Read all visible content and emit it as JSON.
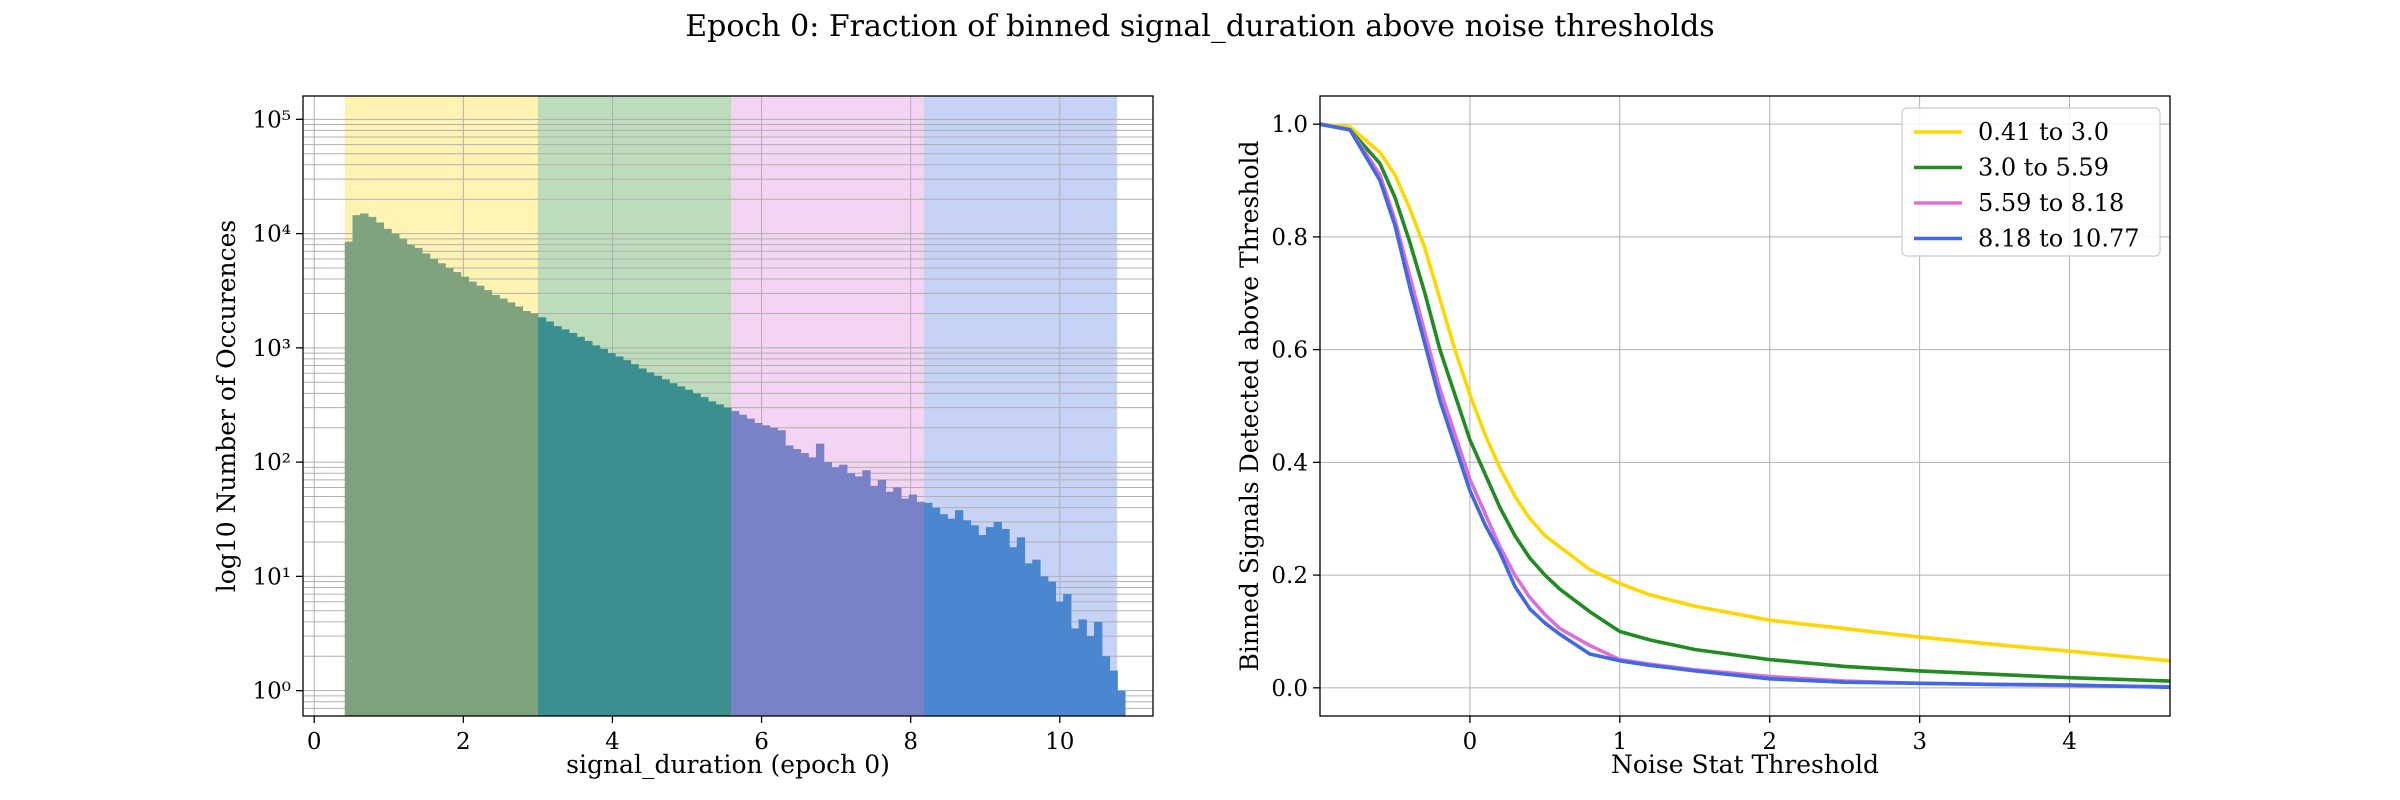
{
  "figure": {
    "title": "Epoch 0: Fraction of binned signal_duration above noise thresholds"
  },
  "chart_data": [
    {
      "type": "bar",
      "subtype": "histogram",
      "xlabel": "signal_duration (epoch 0)",
      "ylabel": "log10 Number of Occurences",
      "yscale": "log",
      "xlim": [
        -0.15,
        11.25
      ],
      "ylim": [
        0.6,
        160000
      ],
      "xticks": [
        0,
        2,
        4,
        6,
        8,
        10
      ],
      "xtick_labels": [
        "0",
        "2",
        "4",
        "6",
        "8",
        "10"
      ],
      "yticks": [
        1,
        10,
        100,
        1000,
        10000,
        100000
      ],
      "ytick_labels": [
        "10⁰",
        "10¹",
        "10²",
        "10³",
        "10⁴",
        "10⁵"
      ],
      "grid": true,
      "bin_start": 0.41,
      "bin_width": 0.1036,
      "counts": [
        8500,
        14500,
        15000,
        14000,
        12500,
        11000,
        10000,
        9000,
        8000,
        7500,
        6700,
        6000,
        5500,
        5000,
        4600,
        4200,
        3800,
        3500,
        3200,
        2900,
        2700,
        2500,
        2300,
        2100,
        2000,
        1850,
        1700,
        1550,
        1450,
        1350,
        1250,
        1150,
        1050,
        980,
        900,
        840,
        780,
        720,
        660,
        610,
        570,
        530,
        490,
        460,
        430,
        400,
        370,
        340,
        320,
        300,
        280,
        260,
        240,
        220,
        210,
        200,
        190,
        140,
        130,
        120,
        110,
        145,
        100,
        90,
        95,
        80,
        75,
        85,
        62,
        70,
        55,
        60,
        48,
        52,
        45,
        44,
        40,
        35,
        32,
        38,
        31,
        28,
        23,
        27,
        30,
        26,
        18,
        22,
        13,
        14,
        10,
        9,
        6,
        7,
        3.5,
        4.2,
        3.0,
        4.0,
        2.0,
        1.5,
        1.0
      ],
      "highlight_bands": [
        {
          "label": "0.41 to 3.0",
          "x0": 0.41,
          "x1": 3.0,
          "color": "#ffd700"
        },
        {
          "label": "3.0 to 5.59",
          "x0": 3.0,
          "x1": 5.59,
          "color": "#228b22"
        },
        {
          "label": "5.59 to 8.18",
          "x0": 5.59,
          "x1": 8.18,
          "color": "#da70d6"
        },
        {
          "label": "8.18 to 10.77",
          "x0": 8.18,
          "x1": 10.77,
          "color": "#4169e1"
        }
      ],
      "band_bar_colors": [
        "#7fa37f",
        "#3b8f8f",
        "#7a82c7",
        "#4a87ce"
      ]
    },
    {
      "type": "line",
      "xlabel": "Noise Stat Threshold",
      "ylabel": "Binned Signals Detected above Threshold",
      "xlim": [
        -1.0,
        4.67
      ],
      "ylim": [
        -0.05,
        1.05
      ],
      "xticks": [
        0,
        1,
        2,
        3,
        4
      ],
      "xtick_labels": [
        "0",
        "1",
        "2",
        "3",
        "4"
      ],
      "yticks": [
        0.0,
        0.2,
        0.4,
        0.6,
        0.8,
        1.0
      ],
      "ytick_labels": [
        "0.0",
        "0.2",
        "0.4",
        "0.6",
        "0.8",
        "1.0"
      ],
      "grid": true,
      "legend_position": "top-right",
      "x": [
        -1.0,
        -0.8,
        -0.6,
        -0.5,
        -0.4,
        -0.3,
        -0.2,
        -0.1,
        0.0,
        0.1,
        0.2,
        0.3,
        0.4,
        0.5,
        0.6,
        0.8,
        1.0,
        1.2,
        1.5,
        2.0,
        2.5,
        3.0,
        3.5,
        4.0,
        4.67
      ],
      "series": [
        {
          "name": "0.41 to 3.0",
          "color": "#ffd700",
          "values": [
            1.0,
            0.995,
            0.95,
            0.91,
            0.85,
            0.78,
            0.69,
            0.6,
            0.52,
            0.45,
            0.39,
            0.34,
            0.3,
            0.27,
            0.25,
            0.21,
            0.185,
            0.165,
            0.145,
            0.12,
            0.105,
            0.09,
            0.077,
            0.065,
            0.048
          ]
        },
        {
          "name": "3.0 to 5.59",
          "color": "#228b22",
          "values": [
            1.0,
            0.99,
            0.93,
            0.87,
            0.79,
            0.7,
            0.6,
            0.52,
            0.44,
            0.38,
            0.32,
            0.27,
            0.23,
            0.2,
            0.175,
            0.135,
            0.1,
            0.085,
            0.068,
            0.05,
            0.038,
            0.03,
            0.024,
            0.018,
            0.012
          ]
        },
        {
          "name": "5.59 to 8.18",
          "color": "#da70d6",
          "values": [
            1.0,
            0.99,
            0.91,
            0.83,
            0.73,
            0.63,
            0.53,
            0.45,
            0.37,
            0.31,
            0.25,
            0.2,
            0.16,
            0.13,
            0.105,
            0.075,
            0.05,
            0.042,
            0.032,
            0.02,
            0.012,
            0.008,
            0.006,
            0.004,
            0.002
          ]
        },
        {
          "name": "8.18 to 10.77",
          "color": "#4169e1",
          "values": [
            1.0,
            0.99,
            0.9,
            0.82,
            0.71,
            0.61,
            0.51,
            0.43,
            0.35,
            0.29,
            0.24,
            0.18,
            0.14,
            0.115,
            0.095,
            0.06,
            0.048,
            0.04,
            0.03,
            0.016,
            0.01,
            0.008,
            0.006,
            0.005,
            0.001
          ]
        }
      ]
    }
  ]
}
